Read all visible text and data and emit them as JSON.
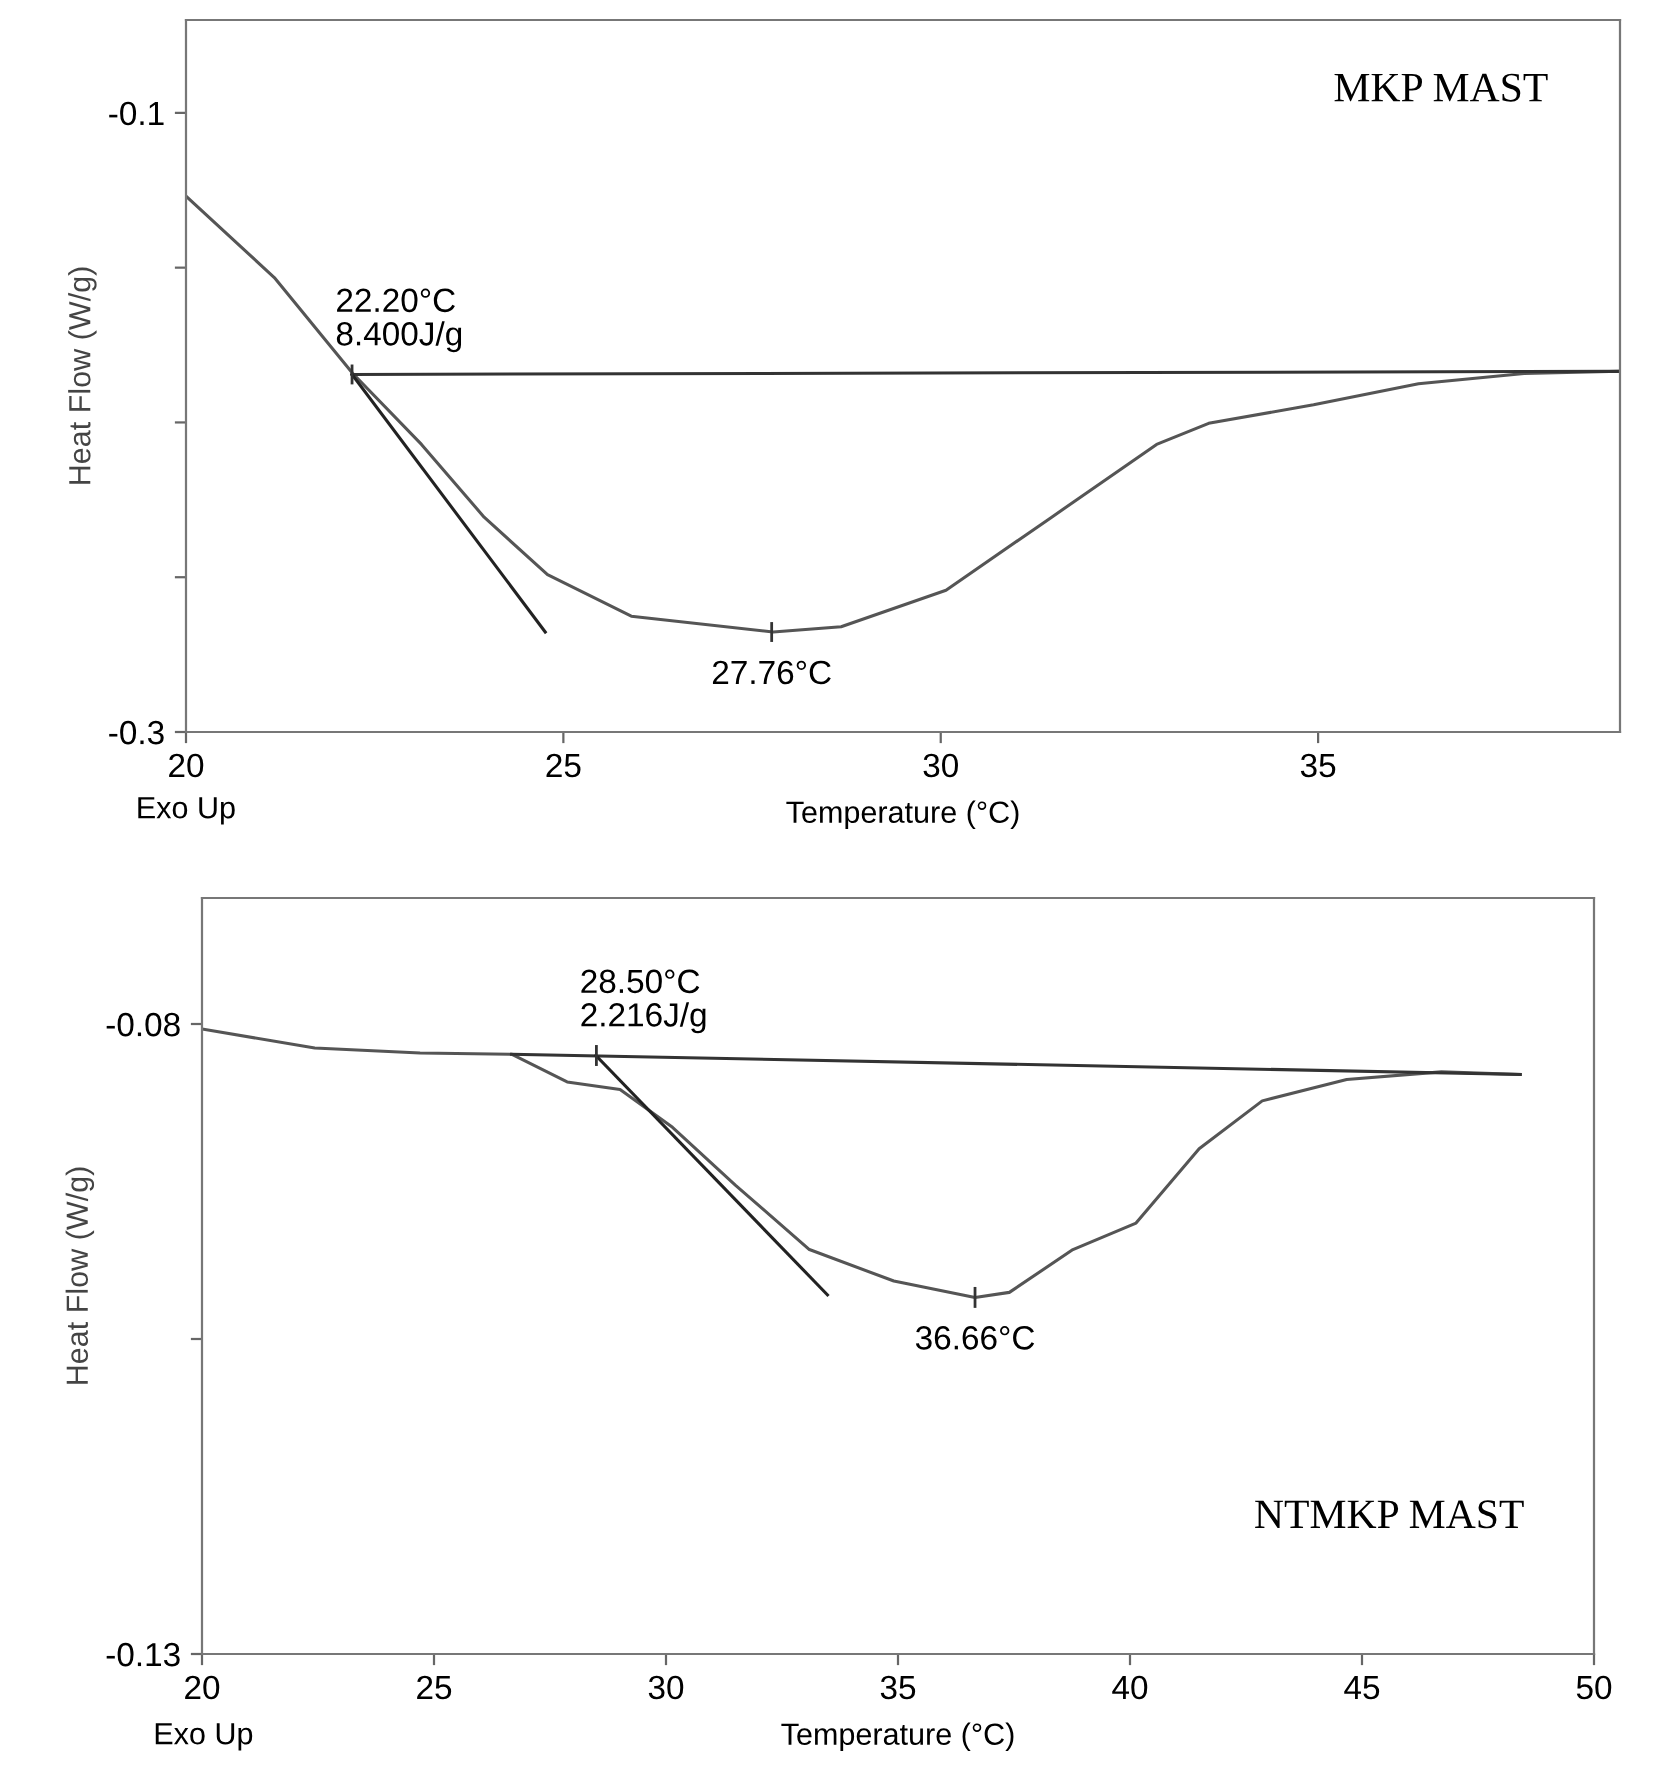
{
  "chart_data": [
    {
      "type": "line",
      "xlabel": "Temperature (°C)",
      "ylabel": "Heat Flow (W/g)",
      "xlim": [
        20,
        39
      ],
      "ylim": [
        -0.3,
        -0.07
      ],
      "xticks": [
        20,
        25,
        30,
        35
      ],
      "yticks": [
        {
          "value": -0.3,
          "label": "-0.3"
        },
        {
          "value": -0.25,
          "label": null
        },
        {
          "value": -0.2,
          "label": null
        },
        {
          "value": -0.15,
          "label": null
        },
        {
          "value": -0.1,
          "label": "-0.1"
        }
      ],
      "grid": false,
      "legend": false,
      "marker": "none",
      "line_style": "solid",
      "series": [
        {
          "color": "#555555",
          "x": [
            20,
            21.17,
            22.21,
            23.12,
            23.95,
            24.79,
            25.9,
            27.78,
            28.68,
            30.07,
            31.47,
            32.86,
            33.55,
            34.94,
            36.33,
            37.73,
            38.98
          ],
          "values": [
            -0.1269,
            -0.1532,
            -0.1842,
            -0.2071,
            -0.2306,
            -0.2492,
            -0.2626,
            -0.2677,
            -0.266,
            -0.2542,
            -0.2306,
            -0.2071,
            -0.2003,
            -0.1943,
            -0.1875,
            -0.1842,
            -0.1835
          ]
        },
        {
          "color": "#333333",
          "x": [
            22.2,
            38.98
          ],
          "values": [
            -0.1845,
            -0.1835
          ]
        },
        {
          "color": "#222222",
          "x": [
            22.2,
            24.76
          ],
          "values": [
            -0.1845,
            -0.2677
          ]
        }
      ],
      "annotations": [
        {
          "text": "22.20°C\n8.400J/g",
          "x": 22.2,
          "y": -0.1845
        },
        {
          "text": "27.76°C",
          "x": 27.76,
          "y": -0.2677
        },
        "MKP MAST",
        "Exo Up"
      ]
    },
    {
      "type": "line",
      "xlabel": "Temperature (°C)",
      "ylabel": "Heat Flow (W/g)",
      "xlim": [
        20,
        50
      ],
      "ylim": [
        -0.13,
        -0.07
      ],
      "xticks": [
        20,
        25,
        30,
        35,
        40,
        45,
        50
      ],
      "yticks": [
        {
          "value": -0.13,
          "label": "-0.13"
        },
        {
          "value": -0.105,
          "label": null
        },
        {
          "value": -0.08,
          "label": "-0.08"
        }
      ],
      "grid": false,
      "legend": false,
      "marker": "none",
      "line_style": "solid",
      "series": [
        {
          "color": "#555555",
          "x": [
            20,
            22.43,
            24.7,
            26.67,
            27.87,
            29.01,
            30.14,
            31.5,
            33.09,
            34.91,
            36.66,
            37.4,
            38.77,
            40.13,
            41.49,
            42.85,
            44.67,
            46.71,
            48.41
          ],
          "values": [
            -0.0804,
            -0.0819,
            -0.0823,
            -0.0824,
            -0.0846,
            -0.0852,
            -0.0882,
            -0.0928,
            -0.0979,
            -0.1004,
            -0.1017,
            -0.1013,
            -0.0979,
            -0.0958,
            -0.0899,
            -0.0861,
            -0.0844,
            -0.0838,
            -0.084
          ]
        },
        {
          "color": "#333333",
          "x": [
            26.67,
            48.41
          ],
          "values": [
            -0.0824,
            -0.084
          ]
        },
        {
          "color": "#222222",
          "x": [
            28.49,
            33.48
          ],
          "values": [
            -0.0825,
            -0.1015
          ]
        }
      ],
      "annotations": [
        {
          "text": "28.50°C\n2.216J/g",
          "x": 28.5,
          "y": -0.0825
        },
        {
          "text": "36.66°C",
          "x": 36.66,
          "y": -0.1017
        },
        "NTMKP MAST",
        "Exo Up"
      ]
    }
  ]
}
